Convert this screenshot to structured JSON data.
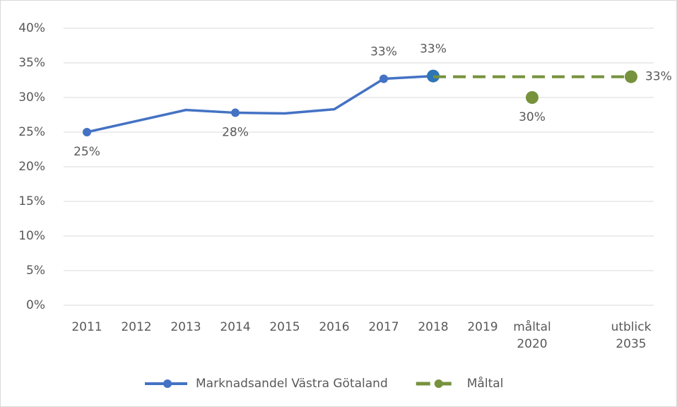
{
  "chart_data": {
    "type": "line",
    "categories": [
      "2011",
      "2012",
      "2013",
      "2014",
      "2015",
      "2016",
      "2017",
      "2018",
      "2019",
      "måltal\n2020",
      null,
      "utblick\n2035"
    ],
    "series": [
      {
        "name": "Marknadsandel Västra Götaland",
        "color": "#4472c4",
        "dash": false,
        "values": [
          25,
          26.6,
          28.2,
          27.8,
          27.7,
          28.3,
          32.7,
          33.1,
          null,
          null,
          null,
          null
        ],
        "value_labels": [
          "25%",
          null,
          null,
          "28%",
          null,
          null,
          "33%",
          "33%",
          null,
          null,
          null,
          null
        ]
      },
      {
        "name": "Måltal",
        "color": "#76923c",
        "dash": true,
        "values": [
          null,
          null,
          null,
          null,
          null,
          null,
          null,
          30,
          null,
          30,
          null,
          null
        ],
        "value_labels": [
          null,
          null,
          null,
          null,
          null,
          null,
          null,
          null,
          null,
          "30%",
          null,
          null
        ]
      },
      {
        "color": "#76923c",
        "dash": true,
        "connect_gaps": true,
        "values": [
          null,
          null,
          null,
          null,
          null,
          null,
          null,
          33,
          null,
          null,
          null,
          33
        ],
        "value_labels": [
          null,
          null,
          null,
          null,
          null,
          null,
          null,
          null,
          null,
          null,
          null,
          "33%"
        ]
      }
    ],
    "ylim": [
      0,
      40
    ],
    "yticks": [
      {
        "value": 0,
        "label": "0%"
      },
      {
        "value": 5,
        "label": "5%"
      },
      {
        "value": 10,
        "label": "10%"
      },
      {
        "value": 15,
        "label": "15%"
      },
      {
        "value": 20,
        "label": "20%"
      },
      {
        "value": 25,
        "label": "25%"
      },
      {
        "value": 30,
        "label": "30%"
      },
      {
        "value": 35,
        "label": "35%"
      },
      {
        "value": 40,
        "label": "40%"
      }
    ],
    "grid": true,
    "legend": "bottom"
  }
}
